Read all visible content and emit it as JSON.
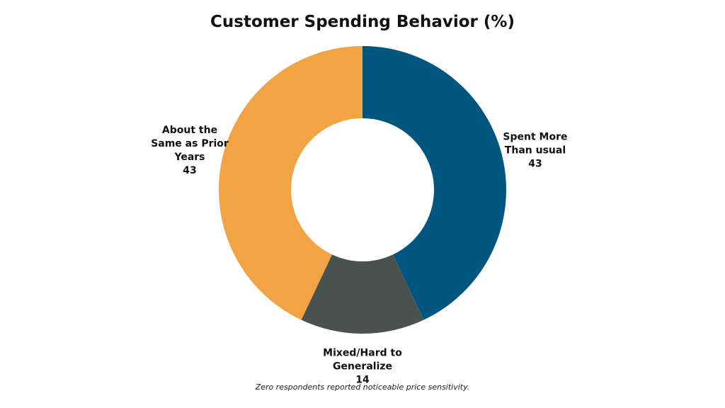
{
  "chart_data": {
    "type": "pie",
    "title": "Customer Spending Behavior (%)",
    "categories": [
      "Spent More Than usual",
      "Mixed/Hard to Generalize",
      "About the Same as Prior Years"
    ],
    "values": [
      43,
      14,
      43
    ],
    "colors": [
      "#00567f",
      "#4a5250",
      "#f2a444"
    ],
    "note": "Zero respondents reported noticeable price sensitivity."
  }
}
